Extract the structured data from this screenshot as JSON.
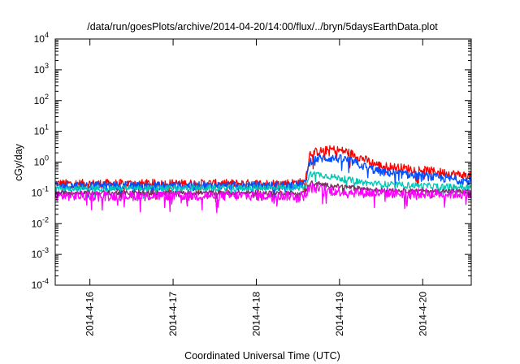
{
  "chart_data": {
    "type": "line",
    "title": "/data/run/goesPlots/archive/2014-04-20/14:00/flux/../bryn/5daysEarthData.plot",
    "xlabel": "Coordinated Universal Time (UTC)",
    "ylabel": "cGy/day",
    "yscale": "log",
    "ylim": [
      0.0001,
      10000
    ],
    "y_ticks": [
      {
        "value": 0.0001,
        "base": "10",
        "exp": "-4"
      },
      {
        "value": 0.001,
        "base": "10",
        "exp": "-3"
      },
      {
        "value": 0.01,
        "base": "10",
        "exp": "-2"
      },
      {
        "value": 0.1,
        "base": "10",
        "exp": "-1"
      },
      {
        "value": 1,
        "base": "10",
        "exp": "0"
      },
      {
        "value": 10,
        "base": "10",
        "exp": "1"
      },
      {
        "value": 100,
        "base": "10",
        "exp": "2"
      },
      {
        "value": 1000,
        "base": "10",
        "exp": "3"
      },
      {
        "value": 10000,
        "base": "10",
        "exp": "4"
      }
    ],
    "xlim": [
      "2014-04-15 14:00",
      "2014-04-20 14:00"
    ],
    "x_ticks": [
      {
        "at": "2014-04-16 00:00",
        "label": "2014-4-16"
      },
      {
        "at": "2014-04-17 00:00",
        "label": "2014-4-17"
      },
      {
        "at": "2014-04-18 00:00",
        "label": "2014-4-18"
      },
      {
        "at": "2014-04-19 00:00",
        "label": "2014-4-19"
      },
      {
        "at": "2014-04-20 00:00",
        "label": "2014-4-20"
      }
    ],
    "grid": false,
    "legend": "none",
    "series": [
      {
        "color": "#ff0000",
        "noise": 0.28,
        "points": [
          [
            "2014-04-15 14:00",
            0.2
          ],
          [
            "2014-04-17 00:00",
            0.2
          ],
          [
            "2014-04-18 06:00",
            0.2
          ],
          [
            "2014-04-18 14:00",
            0.22
          ],
          [
            "2014-04-18 15:30",
            2.0
          ],
          [
            "2014-04-18 18:00",
            2.2
          ],
          [
            "2014-04-18 22:00",
            2.6
          ],
          [
            "2014-04-19 02:00",
            2.2
          ],
          [
            "2014-04-19 09:00",
            1.0
          ],
          [
            "2014-04-19 12:00",
            0.75
          ],
          [
            "2014-04-20 00:00",
            0.55
          ],
          [
            "2014-04-20 14:00",
            0.35
          ]
        ]
      },
      {
        "color": "#0050ff",
        "noise": 0.28,
        "points": [
          [
            "2014-04-15 14:00",
            0.17
          ],
          [
            "2014-04-17 00:00",
            0.17
          ],
          [
            "2014-04-18 06:00",
            0.17
          ],
          [
            "2014-04-18 14:00",
            0.19
          ],
          [
            "2014-04-18 15:30",
            1.1
          ],
          [
            "2014-04-18 18:00",
            1.3
          ],
          [
            "2014-04-18 22:00",
            1.35
          ],
          [
            "2014-04-19 02:00",
            1.2
          ],
          [
            "2014-04-19 09:00",
            0.6
          ],
          [
            "2014-04-19 12:00",
            0.48
          ],
          [
            "2014-04-20 00:00",
            0.35
          ],
          [
            "2014-04-20 14:00",
            0.24
          ]
        ]
      },
      {
        "color": "#00c8b4",
        "noise": 0.2,
        "points": [
          [
            "2014-04-15 14:00",
            0.14
          ],
          [
            "2014-04-17 00:00",
            0.14
          ],
          [
            "2014-04-18 14:00",
            0.15
          ],
          [
            "2014-04-18 15:30",
            0.42
          ],
          [
            "2014-04-18 18:00",
            0.4
          ],
          [
            "2014-04-19 00:00",
            0.3
          ],
          [
            "2014-04-19 09:00",
            0.2
          ],
          [
            "2014-04-20 00:00",
            0.17
          ],
          [
            "2014-04-20 14:00",
            0.15
          ]
        ]
      },
      {
        "color": "#7a2e62",
        "noise": 0.15,
        "points": [
          [
            "2014-04-15 14:00",
            0.1
          ],
          [
            "2014-04-18 14:00",
            0.1
          ],
          [
            "2014-04-18 15:30",
            0.22
          ],
          [
            "2014-04-18 20:00",
            0.18
          ],
          [
            "2014-04-19 06:00",
            0.14
          ],
          [
            "2014-04-19 12:00",
            0.12
          ],
          [
            "2014-04-20 14:00",
            0.11
          ]
        ]
      },
      {
        "color": "#ff00ff",
        "noise": 0.32,
        "points": [
          [
            "2014-04-15 14:00",
            0.08
          ],
          [
            "2014-04-18 14:00",
            0.08
          ],
          [
            "2014-04-18 15:30",
            0.15
          ],
          [
            "2014-04-18 20:00",
            0.12
          ],
          [
            "2014-04-19 06:00",
            0.1
          ],
          [
            "2014-04-20 14:00",
            0.09
          ]
        ]
      }
    ]
  }
}
